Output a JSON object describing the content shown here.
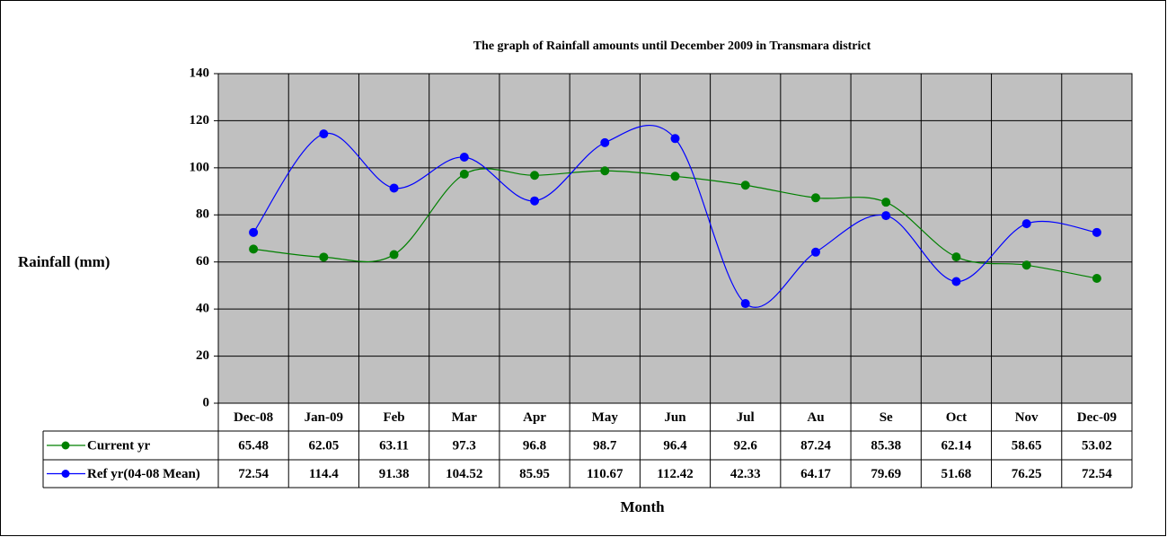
{
  "chart_data": {
    "type": "line",
    "title": "The graph of Rainfall amounts until December 2009 in Transmara district",
    "y_label": "Rainfall (mm)",
    "x_label": "Month",
    "categories": [
      "Dec-08",
      "Jan-09",
      "Feb",
      "Mar",
      "Apr",
      "May",
      "Jun",
      "Jul",
      "Au",
      "Se",
      "Oct",
      "Nov",
      "Dec-09"
    ],
    "series": [
      {
        "name": "Current yr",
        "color": "#008000",
        "values": [
          65.48,
          62.05,
          63.11,
          97.3,
          96.8,
          98.7,
          96.4,
          92.6,
          87.24,
          85.38,
          62.14,
          58.65,
          53.02
        ]
      },
      {
        "name": "Ref yr(04-08 Mean)",
        "color": "#0000ff",
        "values": [
          72.54,
          114.4,
          91.38,
          104.52,
          85.95,
          110.67,
          112.42,
          42.33,
          64.17,
          79.69,
          51.68,
          76.25,
          72.54
        ]
      }
    ],
    "ylim": [
      0,
      140
    ],
    "yticks": [
      0,
      20,
      40,
      60,
      80,
      100,
      120,
      140
    ],
    "grid": true,
    "smooth": true
  }
}
